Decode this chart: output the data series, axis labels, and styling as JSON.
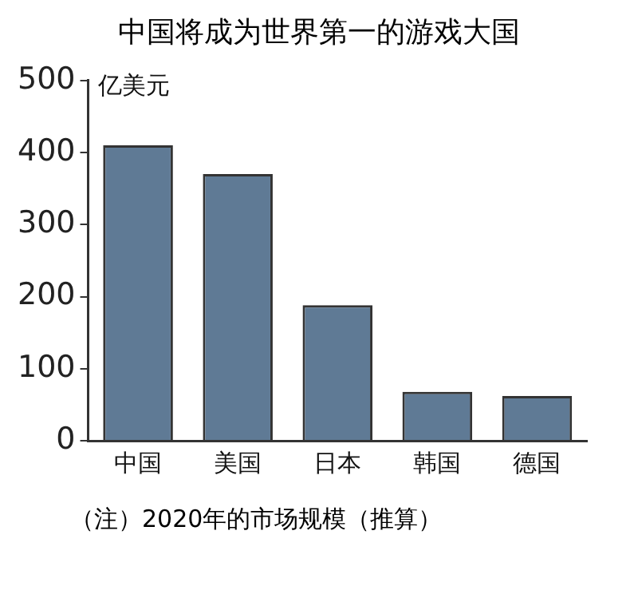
{
  "chart_data": {
    "type": "bar",
    "title": "中国将成为世界第一的游戏大国",
    "ylabel": "亿美元",
    "categories": [
      "中国",
      "美国",
      "日本",
      "韩国",
      "德国"
    ],
    "values": [
      410,
      370,
      188,
      68,
      62
    ],
    "color": "#5f7a95",
    "ylim": [
      0,
      500
    ],
    "yticks": [
      0,
      100,
      200,
      300,
      400,
      500
    ],
    "grid": false,
    "legend": false,
    "annotations": [
      "（注）2020年的市场规模（推算）"
    ]
  }
}
